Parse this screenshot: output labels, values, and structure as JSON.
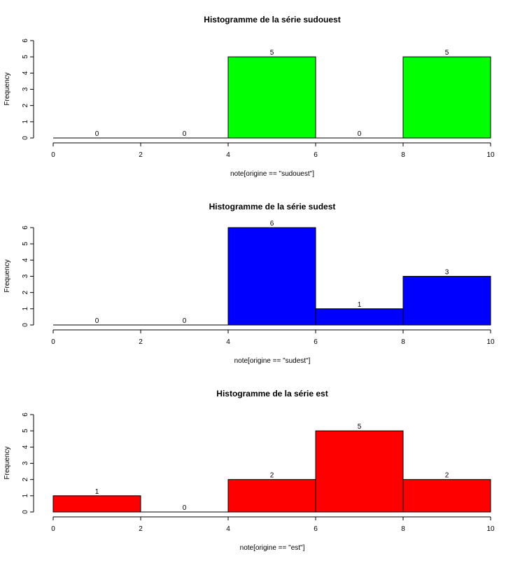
{
  "chart_data": [
    {
      "type": "bar",
      "title": "Histogramme de la série sudouest",
      "xlabel": "note[origine == \"sudouest\"]",
      "ylabel": "Frequency",
      "bins": [
        [
          0,
          2
        ],
        [
          2,
          4
        ],
        [
          4,
          6
        ],
        [
          6,
          8
        ],
        [
          8,
          10
        ]
      ],
      "values": [
        0,
        0,
        5,
        0,
        5
      ],
      "bar_labels": [
        "0",
        "0",
        "5",
        "0",
        "5"
      ],
      "color": "#00ff00",
      "xlim": [
        0,
        10
      ],
      "ylim": [
        0,
        6
      ],
      "x_ticks": [
        "0",
        "2",
        "4",
        "6",
        "8",
        "10"
      ],
      "y_ticks": [
        "0",
        "1",
        "2",
        "3",
        "4",
        "5",
        "6"
      ]
    },
    {
      "type": "bar",
      "title": "Histogramme de la série sudest",
      "xlabel": "note[origine == \"sudest\"]",
      "ylabel": "Frequency",
      "bins": [
        [
          0,
          2
        ],
        [
          2,
          4
        ],
        [
          4,
          6
        ],
        [
          6,
          8
        ],
        [
          8,
          10
        ]
      ],
      "values": [
        0,
        0,
        6,
        1,
        3
      ],
      "bar_labels": [
        "0",
        "0",
        "6",
        "1",
        "3"
      ],
      "color": "#0000ff",
      "xlim": [
        0,
        10
      ],
      "ylim": [
        0,
        6
      ],
      "x_ticks": [
        "0",
        "2",
        "4",
        "6",
        "8",
        "10"
      ],
      "y_ticks": [
        "0",
        "1",
        "2",
        "3",
        "4",
        "5",
        "6"
      ]
    },
    {
      "type": "bar",
      "title": "Histogramme de la série est",
      "xlabel": "note[origine == \"est\"]",
      "ylabel": "Frequency",
      "bins": [
        [
          0,
          2
        ],
        [
          2,
          4
        ],
        [
          4,
          6
        ],
        [
          6,
          8
        ],
        [
          8,
          10
        ]
      ],
      "values": [
        1,
        0,
        2,
        5,
        2
      ],
      "bar_labels": [
        "1",
        "0",
        "2",
        "5",
        "2"
      ],
      "color": "#ff0000",
      "xlim": [
        0,
        10
      ],
      "ylim": [
        0,
        6
      ],
      "x_ticks": [
        "0",
        "2",
        "4",
        "6",
        "8",
        "10"
      ],
      "y_ticks": [
        "0",
        "1",
        "2",
        "3",
        "4",
        "5",
        "6"
      ]
    }
  ]
}
